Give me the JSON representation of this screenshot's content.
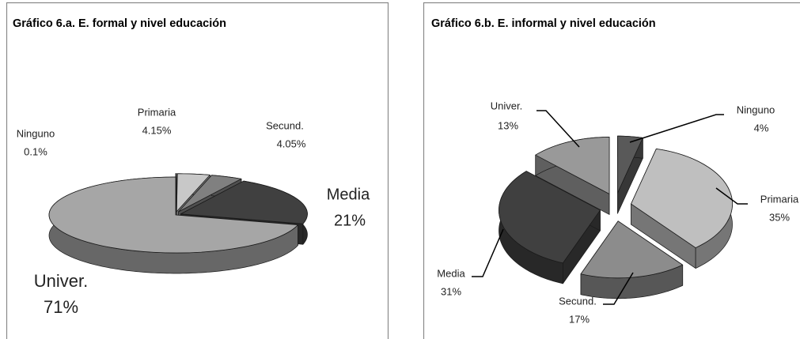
{
  "chart_data": [
    {
      "type": "pie",
      "title": "Gráfico 6.a. E. formal y nivel educación",
      "categories": [
        "Ninguno",
        "Primaria",
        "Secund.",
        "Media",
        "Univer."
      ],
      "values": [
        0.1,
        4.15,
        4.05,
        21,
        71
      ],
      "value_labels": [
        "0.1%",
        "4.15%",
        "4.05%",
        "21%",
        "71%"
      ],
      "colors": [
        "#ffffff",
        "#c8c8c8",
        "#808080",
        "#404040",
        "#a6a6a6"
      ]
    },
    {
      "type": "pie",
      "title": "Gráfico 6.b. E. informal y nivel educación",
      "categories": [
        "Ninguno",
        "Primaria",
        "Secund.",
        "Media",
        "Univer."
      ],
      "values": [
        4,
        35,
        17,
        31,
        13
      ],
      "value_labels": [
        "4%",
        "35%",
        "17%",
        "31%",
        "13%"
      ],
      "colors": [
        "#595959",
        "#bfbfbf",
        "#8c8c8c",
        "#404040",
        "#999999"
      ]
    }
  ]
}
